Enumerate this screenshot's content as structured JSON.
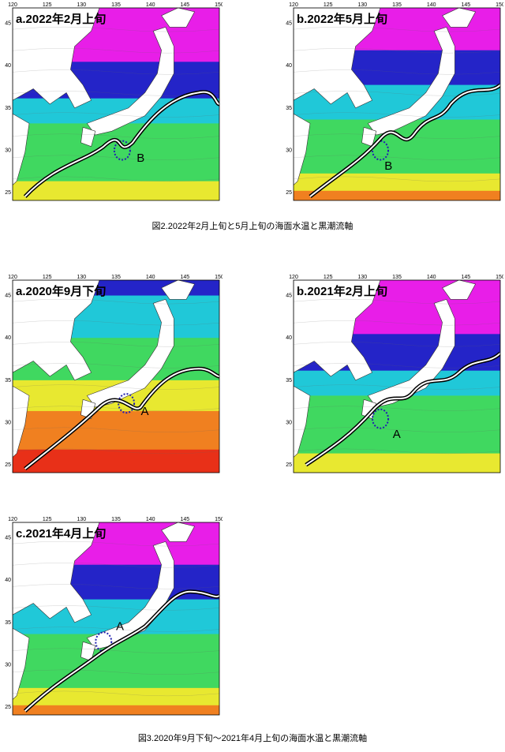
{
  "ticks": {
    "lon": [
      "120",
      "125",
      "130",
      "135",
      "140",
      "145",
      "150"
    ],
    "lat": [
      "45",
      "40",
      "35",
      "30",
      "25"
    ]
  },
  "panels": [
    {
      "id": "p1",
      "title": "a.2022年2月上旬",
      "marker": "B",
      "season": "winter"
    },
    {
      "id": "p2",
      "title": "b.2022年5月上旬",
      "marker": "B",
      "season": "spring"
    },
    {
      "id": "p3",
      "title": "a.2020年9月下旬",
      "marker": "A",
      "season": "autumn"
    },
    {
      "id": "p4",
      "title": "b.2021年2月上旬",
      "marker": "A",
      "season": "winter"
    },
    {
      "id": "p5",
      "title": "c.2021年4月上旬",
      "marker": "A",
      "season": "spring"
    }
  ],
  "captions": {
    "fig2": "図2.2022年2月上旬と5月上旬の海面水温と黒潮流軸",
    "fig3": "図3.2020年9月下旬～2021年4月上旬の海面水温と黒潮流軸"
  },
  "colors": {
    "land": "#ffffff",
    "cold": "#e81ee8",
    "cool": "#2424c8",
    "cyan": "#20c8d8",
    "green": "#40d860",
    "yellow": "#e8e830",
    "orange": "#f08020",
    "red": "#e83018",
    "kuroshio_axis": "#000000",
    "eddy_dots": "#2020b0"
  }
}
